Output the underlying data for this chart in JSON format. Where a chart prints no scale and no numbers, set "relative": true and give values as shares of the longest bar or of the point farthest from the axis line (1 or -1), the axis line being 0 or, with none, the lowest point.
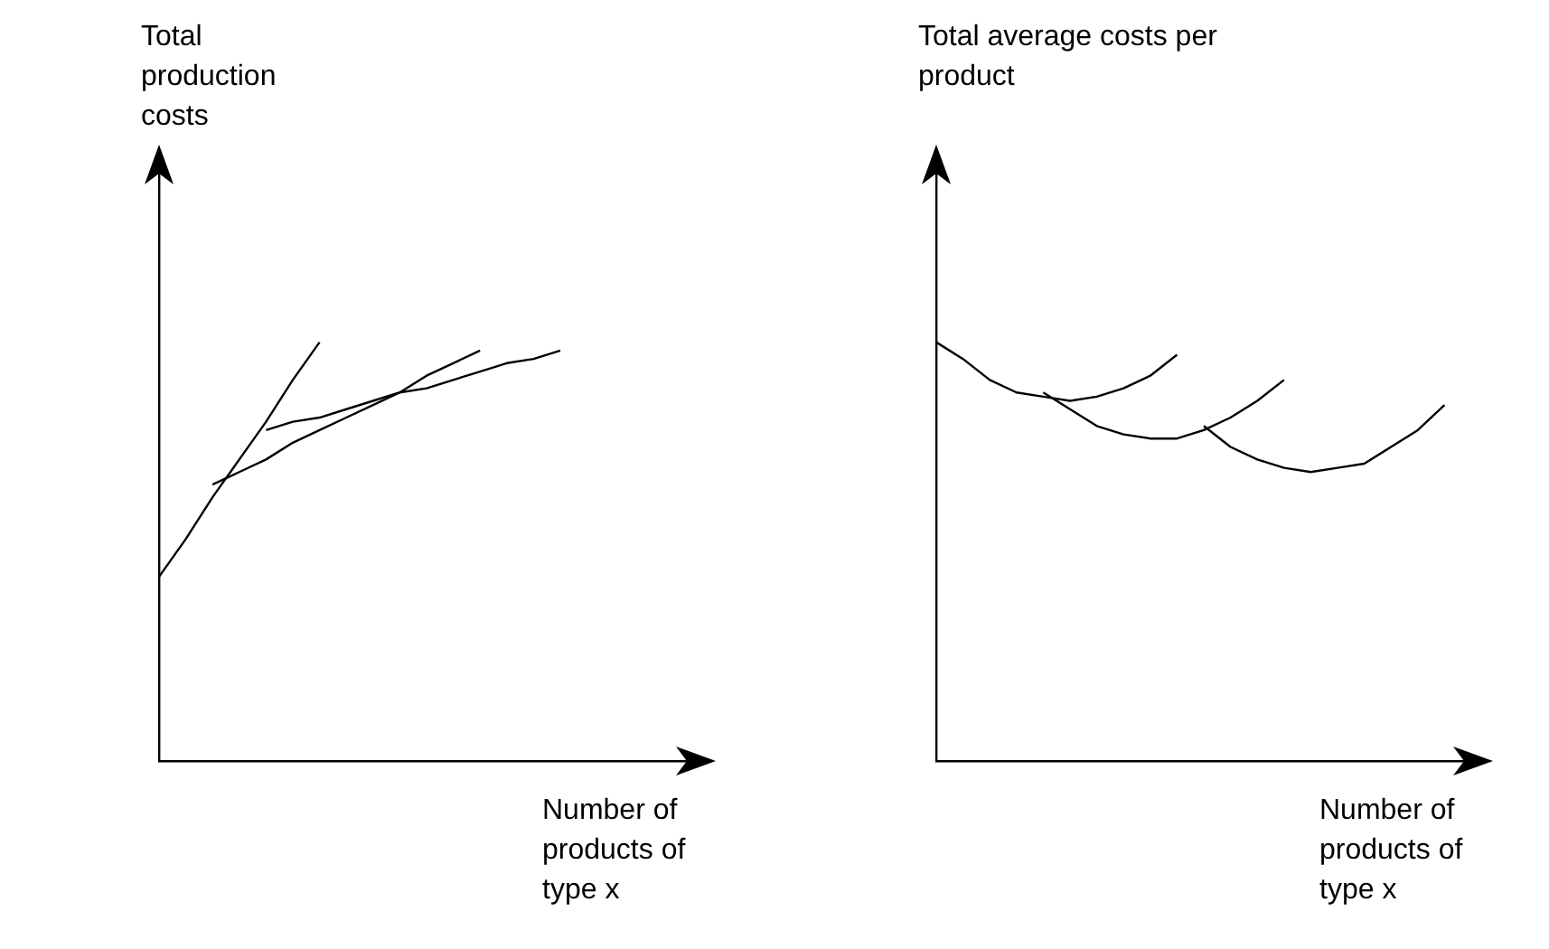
{
  "chart_data": [
    {
      "type": "line",
      "relative": true,
      "ylabel": "Total production costs",
      "xlabel": "Number of products of type x",
      "categories": [
        null,
        null,
        null,
        null,
        null,
        null,
        null,
        null,
        null,
        null,
        null,
        null,
        null,
        null,
        null,
        null,
        null,
        null,
        null,
        null,
        null
      ],
      "tick_labels": false,
      "grid": false,
      "legend": false,
      "series": [
        {
          "color": "#000000",
          "values": [
            0.44,
            0.53,
            0.63,
            0.72,
            0.81,
            0.91,
            1.0,
            null,
            null,
            null,
            null,
            null,
            null,
            null,
            null,
            null,
            null,
            null,
            null,
            null,
            null
          ]
        },
        {
          "color": "#000000",
          "values": [
            null,
            null,
            0.66,
            0.69,
            0.72,
            0.76,
            0.79,
            0.82,
            0.85,
            0.88,
            0.92,
            0.95,
            0.98,
            null,
            null,
            null,
            null,
            null,
            null,
            null,
            null
          ]
        },
        {
          "color": "#000000",
          "values": [
            null,
            null,
            null,
            null,
            0.79,
            0.81,
            0.82,
            0.84,
            0.86,
            0.88,
            0.89,
            0.91,
            0.93,
            0.95,
            0.96,
            0.98,
            null,
            null,
            null,
            null,
            null
          ]
        }
      ]
    },
    {
      "type": "line",
      "relative": true,
      "ylabel": "Total average costs per product",
      "xlabel": "Number of products of type x",
      "categories": [
        null,
        null,
        null,
        null,
        null,
        null,
        null,
        null,
        null,
        null,
        null,
        null,
        null,
        null,
        null,
        null,
        null,
        null,
        null,
        null,
        null
      ],
      "tick_labels": false,
      "grid": false,
      "legend": false,
      "series": [
        {
          "color": "#000000",
          "values": [
            1.0,
            0.96,
            0.91,
            0.88,
            0.87,
            0.86,
            0.87,
            0.89,
            0.92,
            0.97,
            null,
            null,
            null,
            null,
            null,
            null,
            null,
            null,
            null,
            null,
            null
          ]
        },
        {
          "color": "#000000",
          "values": [
            null,
            null,
            null,
            null,
            0.88,
            0.84,
            0.8,
            0.78,
            0.77,
            0.77,
            0.79,
            0.82,
            0.86,
            0.91,
            null,
            null,
            null,
            null,
            null,
            null,
            null
          ]
        },
        {
          "color": "#000000",
          "values": [
            null,
            null,
            null,
            null,
            null,
            null,
            null,
            null,
            null,
            null,
            0.8,
            0.75,
            0.72,
            0.7,
            0.69,
            0.7,
            0.71,
            0.75,
            0.79,
            0.85,
            null
          ]
        }
      ]
    }
  ]
}
